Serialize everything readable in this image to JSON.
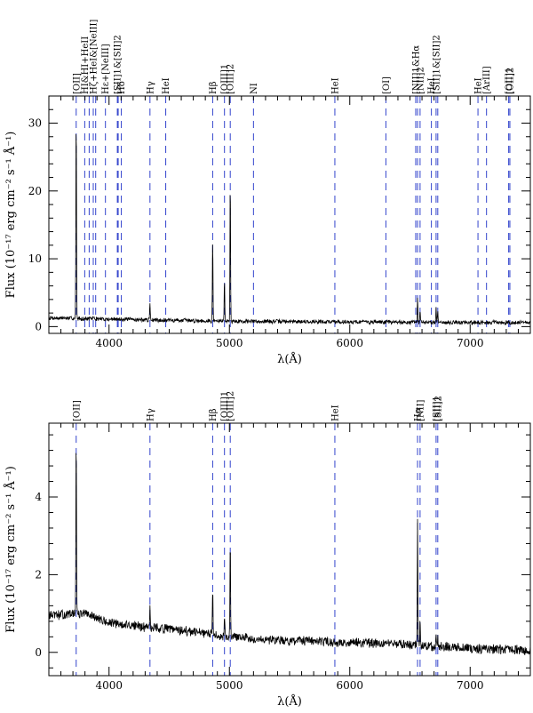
{
  "colors": {
    "frame": "#000000",
    "spectrum": "#000000",
    "line_marker": "#3344cc",
    "background": "#ffffff"
  },
  "chart_data": [
    {
      "type": "line",
      "panel": "top",
      "xlabel": "λ(Å)",
      "ylabel": "Flux (10⁻¹⁷ erg cm⁻² s⁻¹ Å⁻¹)",
      "xlim": [
        3500,
        7500
      ],
      "ylim": [
        -1,
        34
      ],
      "xticks": [
        4000,
        5000,
        6000,
        7000
      ],
      "yticks": [
        0,
        10,
        20,
        30
      ],
      "continuum": [
        [
          3500,
          1.3
        ],
        [
          4000,
          1.1
        ],
        [
          5000,
          0.8
        ],
        [
          6000,
          0.7
        ],
        [
          7000,
          0.6
        ],
        [
          7500,
          0.6
        ]
      ],
      "emission_peaks": [
        {
          "x": 3727,
          "y": 32
        },
        {
          "x": 3869,
          "y": 1.6
        },
        {
          "x": 4102,
          "y": 1.3
        },
        {
          "x": 4340,
          "y": 3.5
        },
        {
          "x": 4861,
          "y": 13
        },
        {
          "x": 4959,
          "y": 7
        },
        {
          "x": 5007,
          "y": 22
        },
        {
          "x": 6563,
          "y": 4.2
        },
        {
          "x": 6584,
          "y": 2.5
        },
        {
          "x": 6717,
          "y": 2.8
        },
        {
          "x": 6731,
          "y": 2.3
        }
      ],
      "lines": [
        {
          "x": 3727,
          "label": "[OII]"
        },
        {
          "x": 3798,
          "label": "HI&HI+HeII"
        },
        {
          "x": 3835,
          "label": ""
        },
        {
          "x": 3869,
          "label": "Hζ+HeI&[NeIII]"
        },
        {
          "x": 3889,
          "label": ""
        },
        {
          "x": 3970,
          "label": "Hε+[NeIII]"
        },
        {
          "x": 4069,
          "label": "[SII]1&[SII]2"
        },
        {
          "x": 4076,
          "label": ""
        },
        {
          "x": 4102,
          "label": "Hδ"
        },
        {
          "x": 4340,
          "label": "Hγ"
        },
        {
          "x": 4471,
          "label": "HeI"
        },
        {
          "x": 4861,
          "label": "Hβ"
        },
        {
          "x": 4959,
          "label": "[OIII]1"
        },
        {
          "x": 5007,
          "label": "[OIII]2"
        },
        {
          "x": 5200,
          "label": "NI"
        },
        {
          "x": 5876,
          "label": "HeI"
        },
        {
          "x": 6300,
          "label": "[OI]"
        },
        {
          "x": 6548,
          "label": "[NII]1&Hα"
        },
        {
          "x": 6563,
          "label": ""
        },
        {
          "x": 6584,
          "label": "[NII]2"
        },
        {
          "x": 6678,
          "label": "HeI"
        },
        {
          "x": 6717,
          "label": "[SII]1&[SII]2"
        },
        {
          "x": 6731,
          "label": ""
        },
        {
          "x": 7065,
          "label": "HeI"
        },
        {
          "x": 7136,
          "label": "[ArIII]"
        },
        {
          "x": 7320,
          "label": "[OII]1"
        },
        {
          "x": 7330,
          "label": "[OII]2"
        }
      ]
    },
    {
      "type": "line",
      "panel": "bottom",
      "xlabel": "λ(Å)",
      "ylabel": "Flux (10⁻¹⁷ erg cm⁻² s⁻¹ Å⁻¹)",
      "xlim": [
        3500,
        7500
      ],
      "ylim": [
        -0.6,
        5.9
      ],
      "xticks": [
        4000,
        5000,
        6000,
        7000
      ],
      "yticks": [
        0,
        2,
        4
      ],
      "continuum": [
        [
          3500,
          0.95
        ],
        [
          3800,
          1.0
        ],
        [
          4000,
          0.75
        ],
        [
          4500,
          0.6
        ],
        [
          5000,
          0.4
        ],
        [
          5500,
          0.3
        ],
        [
          6000,
          0.25
        ],
        [
          6500,
          0.2
        ],
        [
          7000,
          0.1
        ],
        [
          7500,
          0.05
        ]
      ],
      "emission_peaks": [
        {
          "x": 3727,
          "y": 5.7
        },
        {
          "x": 4340,
          "y": 1.2
        },
        {
          "x": 4861,
          "y": 1.7
        },
        {
          "x": 4959,
          "y": 1.0
        },
        {
          "x": 5007,
          "y": 3.0
        },
        {
          "x": 6563,
          "y": 3.4
        },
        {
          "x": 6584,
          "y": 0.8
        },
        {
          "x": 6717,
          "y": 0.4
        },
        {
          "x": 6731,
          "y": 0.35
        }
      ],
      "lines": [
        {
          "x": 3727,
          "label": "[OII]"
        },
        {
          "x": 4340,
          "label": "Hγ"
        },
        {
          "x": 4861,
          "label": "Hβ"
        },
        {
          "x": 4959,
          "label": "[OIII]1"
        },
        {
          "x": 5007,
          "label": "[OIII]2"
        },
        {
          "x": 5876,
          "label": "HeI"
        },
        {
          "x": 6563,
          "label": "Hα"
        },
        {
          "x": 6584,
          "label": "[NII]"
        },
        {
          "x": 6717,
          "label": "[SII]1"
        },
        {
          "x": 6731,
          "label": "[SII]2"
        }
      ]
    }
  ]
}
